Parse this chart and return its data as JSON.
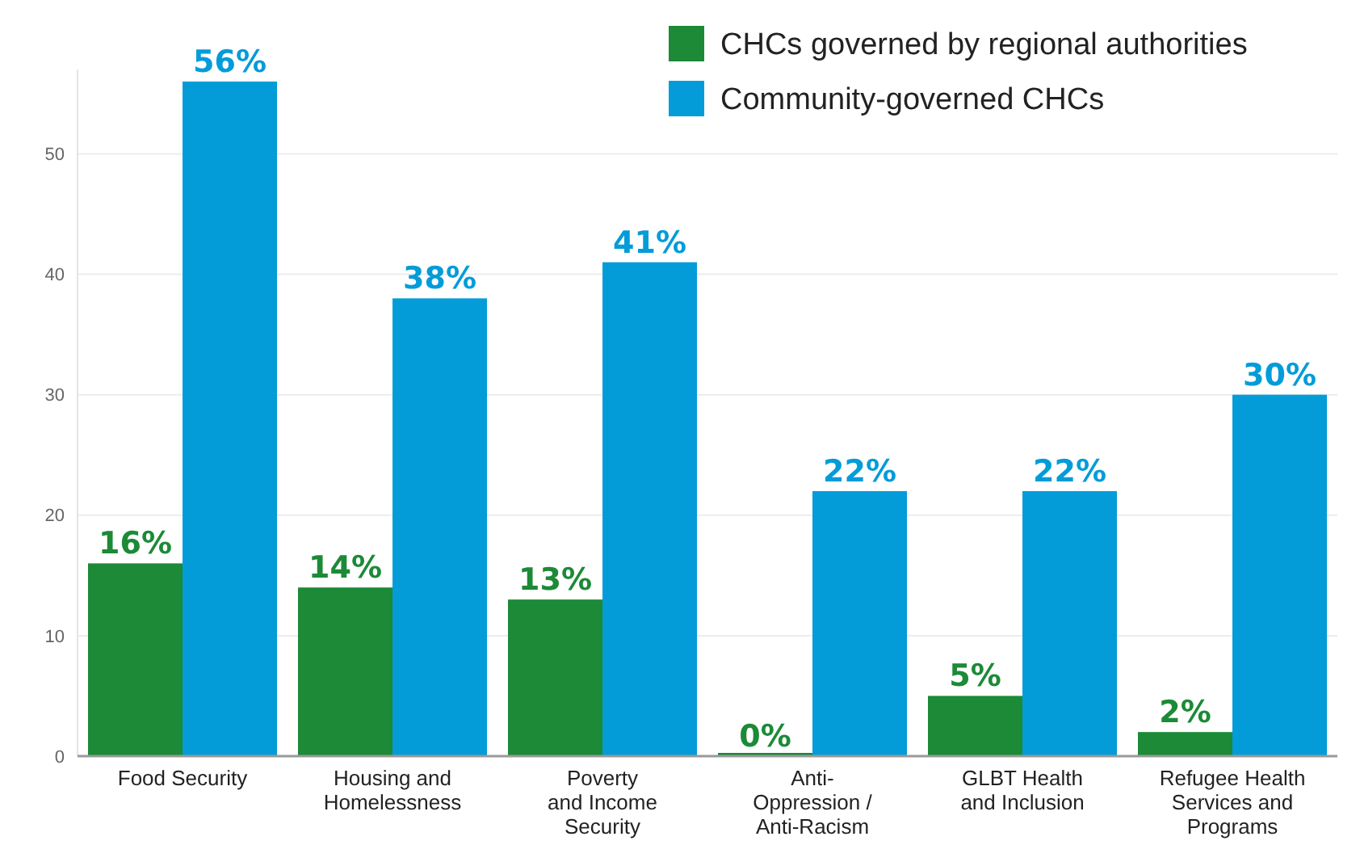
{
  "chart_data": {
    "type": "bar",
    "categories": [
      "Food Security",
      "Housing and\nHomelessness",
      "Poverty\nand Income\nSecurity",
      "Anti-\nOppression /\nAnti-Racism",
      "GLBT Health\nand Inclusion",
      "Refugee Health\nServices and\nPrograms"
    ],
    "series": [
      {
        "name": "CHCs governed by regional authorities",
        "color": "#1c8a37",
        "values": [
          16,
          14,
          13,
          0,
          5,
          2
        ],
        "value_labels": [
          "16%",
          "14%",
          "13%",
          "0%",
          "5%",
          "2%"
        ]
      },
      {
        "name": "Community-governed CHCs",
        "color": "#039cd9",
        "values": [
          56,
          38,
          41,
          22,
          22,
          30
        ],
        "value_labels": [
          "56%",
          "38%",
          "41%",
          "22%",
          "22%",
          "30%"
        ]
      }
    ],
    "ylim": [
      0,
      57
    ],
    "yticks": [
      0,
      10,
      20,
      30,
      40,
      50
    ],
    "grid": "y",
    "legend": "top right"
  }
}
